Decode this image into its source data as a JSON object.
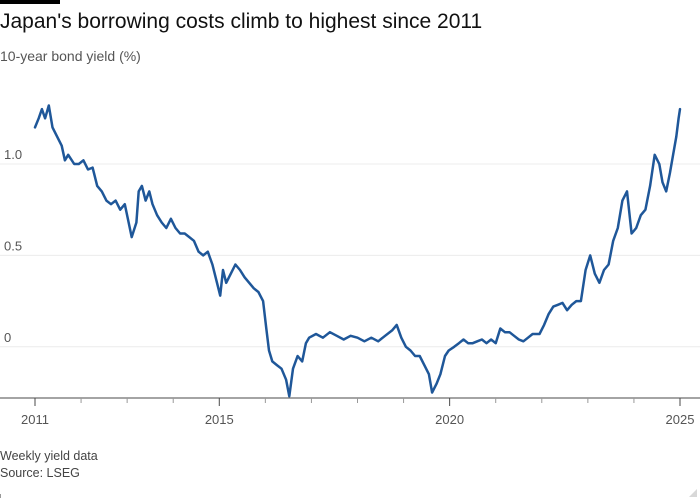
{
  "header": {
    "title": "Japan's borrowing costs climb to highest since 2011",
    "subtitle": "10-year bond yield (%)"
  },
  "footer": {
    "note": "Weekly yield data",
    "source": "Source: LSEG"
  },
  "colors": {
    "line": "#1f5799",
    "grid": "#ececec",
    "axis": "#4a4a4a",
    "text": "#555555"
  },
  "chart_data": {
    "type": "line",
    "title": "Japan's borrowing costs climb to highest since 2011",
    "subtitle": "10-year bond yield (%)",
    "xlabel": "",
    "ylabel": "",
    "x_ticks": [
      "2011",
      "2015",
      "2020",
      "2025"
    ],
    "y_ticks": [
      {
        "value": 1.0,
        "label": "1.0"
      },
      {
        "value": 0.5,
        "label": "0.5"
      },
      {
        "value": 0,
        "label": "0"
      }
    ],
    "xlim": [
      2011,
      2025
    ],
    "ylim": [
      -0.28,
      1.35
    ],
    "grid": true,
    "series": [
      {
        "values": [
          [
            2011.0,
            1.2
          ],
          [
            2011.08,
            1.25
          ],
          [
            2011.15,
            1.3
          ],
          [
            2011.22,
            1.25
          ],
          [
            2011.3,
            1.32
          ],
          [
            2011.38,
            1.2
          ],
          [
            2011.48,
            1.15
          ],
          [
            2011.58,
            1.1
          ],
          [
            2011.65,
            1.02
          ],
          [
            2011.72,
            1.05
          ],
          [
            2011.85,
            1.0
          ],
          [
            2011.95,
            1.0
          ],
          [
            2012.05,
            1.02
          ],
          [
            2012.15,
            0.97
          ],
          [
            2012.25,
            0.98
          ],
          [
            2012.35,
            0.88
          ],
          [
            2012.45,
            0.85
          ],
          [
            2012.55,
            0.8
          ],
          [
            2012.65,
            0.78
          ],
          [
            2012.75,
            0.8
          ],
          [
            2012.85,
            0.75
          ],
          [
            2012.95,
            0.78
          ],
          [
            2013.1,
            0.6
          ],
          [
            2013.2,
            0.68
          ],
          [
            2013.25,
            0.85
          ],
          [
            2013.32,
            0.88
          ],
          [
            2013.4,
            0.8
          ],
          [
            2013.48,
            0.85
          ],
          [
            2013.55,
            0.78
          ],
          [
            2013.65,
            0.72
          ],
          [
            2013.75,
            0.68
          ],
          [
            2013.85,
            0.65
          ],
          [
            2013.95,
            0.7
          ],
          [
            2014.05,
            0.65
          ],
          [
            2014.15,
            0.62
          ],
          [
            2014.25,
            0.62
          ],
          [
            2014.35,
            0.6
          ],
          [
            2014.45,
            0.58
          ],
          [
            2014.55,
            0.52
          ],
          [
            2014.65,
            0.5
          ],
          [
            2014.75,
            0.52
          ],
          [
            2014.85,
            0.45
          ],
          [
            2014.95,
            0.35
          ],
          [
            2015.02,
            0.28
          ],
          [
            2015.08,
            0.42
          ],
          [
            2015.15,
            0.35
          ],
          [
            2015.25,
            0.4
          ],
          [
            2015.35,
            0.45
          ],
          [
            2015.45,
            0.42
          ],
          [
            2015.55,
            0.38
          ],
          [
            2015.65,
            0.35
          ],
          [
            2015.75,
            0.32
          ],
          [
            2015.85,
            0.3
          ],
          [
            2015.95,
            0.25
          ],
          [
            2016.02,
            0.1
          ],
          [
            2016.08,
            -0.02
          ],
          [
            2016.15,
            -0.08
          ],
          [
            2016.25,
            -0.1
          ],
          [
            2016.35,
            -0.12
          ],
          [
            2016.45,
            -0.18
          ],
          [
            2016.52,
            -0.27
          ],
          [
            2016.6,
            -0.12
          ],
          [
            2016.7,
            -0.05
          ],
          [
            2016.8,
            -0.08
          ],
          [
            2016.88,
            0.02
          ],
          [
            2016.95,
            0.05
          ],
          [
            2017.1,
            0.07
          ],
          [
            2017.25,
            0.05
          ],
          [
            2017.4,
            0.08
          ],
          [
            2017.55,
            0.06
          ],
          [
            2017.7,
            0.04
          ],
          [
            2017.85,
            0.06
          ],
          [
            2018.0,
            0.05
          ],
          [
            2018.15,
            0.03
          ],
          [
            2018.3,
            0.05
          ],
          [
            2018.45,
            0.03
          ],
          [
            2018.6,
            0.06
          ],
          [
            2018.75,
            0.09
          ],
          [
            2018.85,
            0.12
          ],
          [
            2018.95,
            0.05
          ],
          [
            2019.05,
            0.0
          ],
          [
            2019.15,
            -0.02
          ],
          [
            2019.25,
            -0.05
          ],
          [
            2019.35,
            -0.05
          ],
          [
            2019.45,
            -0.1
          ],
          [
            2019.55,
            -0.15
          ],
          [
            2019.62,
            -0.25
          ],
          [
            2019.72,
            -0.2
          ],
          [
            2019.8,
            -0.15
          ],
          [
            2019.9,
            -0.05
          ],
          [
            2019.98,
            -0.02
          ],
          [
            2020.1,
            0.0
          ],
          [
            2020.2,
            0.02
          ],
          [
            2020.3,
            0.04
          ],
          [
            2020.4,
            0.02
          ],
          [
            2020.5,
            0.02
          ],
          [
            2020.6,
            0.03
          ],
          [
            2020.7,
            0.04
          ],
          [
            2020.8,
            0.02
          ],
          [
            2020.9,
            0.04
          ],
          [
            2021.0,
            0.02
          ],
          [
            2021.1,
            0.1
          ],
          [
            2021.2,
            0.08
          ],
          [
            2021.3,
            0.08
          ],
          [
            2021.4,
            0.06
          ],
          [
            2021.5,
            0.04
          ],
          [
            2021.6,
            0.03
          ],
          [
            2021.7,
            0.05
          ],
          [
            2021.8,
            0.07
          ],
          [
            2021.95,
            0.07
          ],
          [
            2022.05,
            0.12
          ],
          [
            2022.15,
            0.18
          ],
          [
            2022.25,
            0.22
          ],
          [
            2022.35,
            0.23
          ],
          [
            2022.45,
            0.24
          ],
          [
            2022.55,
            0.2
          ],
          [
            2022.65,
            0.23
          ],
          [
            2022.75,
            0.25
          ],
          [
            2022.85,
            0.25
          ],
          [
            2022.95,
            0.42
          ],
          [
            2023.05,
            0.5
          ],
          [
            2023.15,
            0.4
          ],
          [
            2023.25,
            0.35
          ],
          [
            2023.35,
            0.42
          ],
          [
            2023.45,
            0.45
          ],
          [
            2023.55,
            0.58
          ],
          [
            2023.65,
            0.65
          ],
          [
            2023.75,
            0.8
          ],
          [
            2023.85,
            0.85
          ],
          [
            2023.95,
            0.62
          ],
          [
            2024.05,
            0.65
          ],
          [
            2024.15,
            0.72
          ],
          [
            2024.25,
            0.75
          ],
          [
            2024.35,
            0.88
          ],
          [
            2024.45,
            1.05
          ],
          [
            2024.55,
            1.0
          ],
          [
            2024.62,
            0.9
          ],
          [
            2024.7,
            0.85
          ],
          [
            2024.78,
            0.95
          ],
          [
            2024.85,
            1.05
          ],
          [
            2024.92,
            1.15
          ],
          [
            2024.97,
            1.25
          ],
          [
            2025.0,
            1.3
          ]
        ]
      }
    ]
  }
}
